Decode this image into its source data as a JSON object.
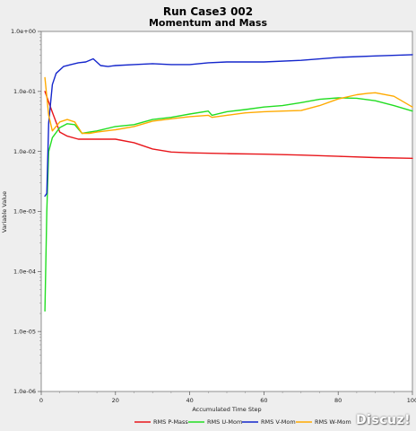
{
  "chart_data": {
    "type": "line",
    "title": "Run Case3 002",
    "subtitle": "Momentum and Mass",
    "xlabel": "Accumulated Time Step",
    "ylabel": "Variable Value",
    "xlim": [
      0,
      100
    ],
    "ylim": [
      1e-06,
      1
    ],
    "yscale": "log",
    "x_ticks": [
      "0",
      "20",
      "40",
      "60",
      "80",
      "100"
    ],
    "y_ticks": [
      "1.0e-06",
      "1.0e-05",
      "1.0e-04",
      "1.0e-03",
      "1.0e-02",
      "1.0e-01",
      "1.0e+00"
    ],
    "grid": false,
    "legend_position": "bottom",
    "series": [
      {
        "name": "RMS P-Mass",
        "color": "#e8161b",
        "x": [
          1,
          3,
          5,
          7,
          10,
          15,
          20,
          25,
          30,
          35,
          40,
          50,
          60,
          70,
          80,
          90,
          100
        ],
        "y": [
          0.1,
          0.045,
          0.021,
          0.018,
          0.016,
          0.016,
          0.016,
          0.014,
          0.011,
          0.0098,
          0.0095,
          0.0092,
          0.009,
          0.0087,
          0.0083,
          0.0079,
          0.0077
        ]
      },
      {
        "name": "RMS U-Mom",
        "color": "#22dd22",
        "x": [
          1,
          1.5,
          2,
          3,
          5,
          7,
          9,
          11,
          13,
          15,
          20,
          25,
          30,
          35,
          40,
          45,
          46,
          50,
          55,
          60,
          65,
          70,
          75,
          80,
          85,
          90,
          95,
          100
        ],
        "y": [
          2.2e-05,
          0.001,
          0.01,
          0.017,
          0.025,
          0.029,
          0.028,
          0.02,
          0.021,
          0.022,
          0.026,
          0.028,
          0.034,
          0.037,
          0.042,
          0.047,
          0.04,
          0.046,
          0.05,
          0.055,
          0.058,
          0.065,
          0.074,
          0.078,
          0.077,
          0.07,
          0.058,
          0.047
        ]
      },
      {
        "name": "RMS V-Mom",
        "color": "#1426cc",
        "x": [
          1,
          1.5,
          2,
          3,
          4,
          6,
          8,
          10,
          12,
          14,
          16,
          18,
          20,
          25,
          30,
          35,
          40,
          45,
          50,
          60,
          70,
          80,
          90,
          100
        ],
        "y": [
          0.0018,
          0.002,
          0.03,
          0.13,
          0.2,
          0.26,
          0.28,
          0.3,
          0.31,
          0.35,
          0.27,
          0.26,
          0.27,
          0.28,
          0.29,
          0.28,
          0.28,
          0.3,
          0.31,
          0.31,
          0.33,
          0.37,
          0.39,
          0.41
        ]
      },
      {
        "name": "RMS W-Mom",
        "color": "#ffaa00",
        "x": [
          1,
          2,
          3,
          5,
          7,
          9,
          11,
          13,
          15,
          20,
          25,
          30,
          35,
          40,
          45,
          46,
          50,
          55,
          60,
          65,
          70,
          75,
          80,
          85,
          88,
          90,
          95,
          100
        ],
        "y": [
          0.17,
          0.04,
          0.022,
          0.031,
          0.034,
          0.031,
          0.02,
          0.02,
          0.021,
          0.023,
          0.026,
          0.032,
          0.035,
          0.038,
          0.04,
          0.037,
          0.04,
          0.044,
          0.046,
          0.047,
          0.048,
          0.058,
          0.075,
          0.088,
          0.093,
          0.095,
          0.083,
          0.055
        ]
      }
    ]
  },
  "watermark": "Discuz!"
}
